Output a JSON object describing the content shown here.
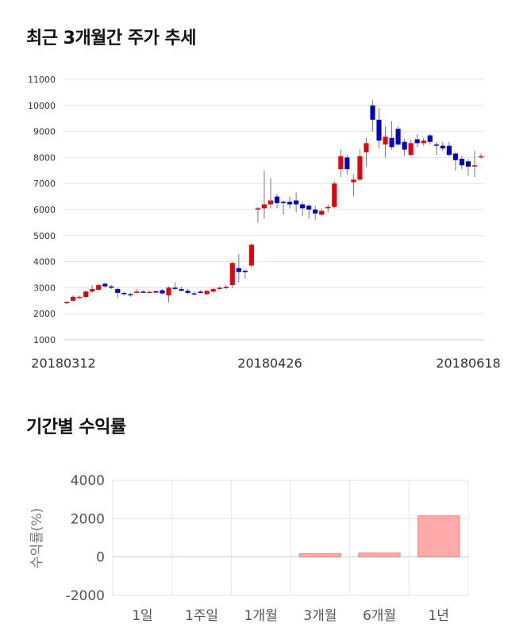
{
  "sections": {
    "price_title": "최근 3개월간 주가 추세",
    "returns_title": "기간별 수익률"
  },
  "chart_data": [
    {
      "type": "candlestick",
      "title": "최근 3개월간 주가 추세",
      "ylim": [
        1000,
        11000
      ],
      "y_ticks": [
        1000,
        2000,
        3000,
        4000,
        5000,
        6000,
        7000,
        8000,
        9000,
        10000,
        11000
      ],
      "x_tick_labels": [
        "20180312",
        "20180426",
        "20180618"
      ],
      "grid": true,
      "colors": {
        "up": "#e8000b",
        "down": "#0000cc",
        "grid": "#e6e6e6"
      },
      "candles": [
        [
          2400,
          2450,
          2380,
          2480
        ],
        [
          2500,
          2650,
          2450,
          2700
        ],
        [
          2620,
          2650,
          2580,
          2700
        ],
        [
          2640,
          2850,
          2600,
          2900
        ],
        [
          2850,
          2950,
          2800,
          3100
        ],
        [
          2920,
          3100,
          2880,
          3150
        ],
        [
          3150,
          3050,
          3000,
          3200
        ],
        [
          3050,
          3000,
          2950,
          3100
        ],
        [
          2950,
          2800,
          2600,
          3000
        ],
        [
          2800,
          2750,
          2700,
          2850
        ],
        [
          2750,
          2720,
          2650,
          2800
        ],
        [
          2800,
          2850,
          2780,
          2950
        ],
        [
          2850,
          2830,
          2800,
          2900
        ],
        [
          2830,
          2840,
          2800,
          2880
        ],
        [
          2860,
          2820,
          2800,
          2900
        ],
        [
          2900,
          2780,
          2750,
          2950
        ],
        [
          2700,
          3000,
          2450,
          3050
        ],
        [
          3000,
          2980,
          2900,
          3200
        ],
        [
          2950,
          2880,
          2850,
          3050
        ],
        [
          2880,
          2800,
          2750,
          2950
        ],
        [
          2780,
          2760,
          2700,
          2850
        ],
        [
          2850,
          2800,
          2780,
          2900
        ],
        [
          2750,
          2880,
          2720,
          2900
        ],
        [
          2850,
          2950,
          2800,
          3000
        ],
        [
          2950,
          3000,
          2900,
          3050
        ],
        [
          2980,
          3030,
          2950,
          3100
        ],
        [
          3100,
          3950,
          3000,
          4000
        ],
        [
          3750,
          3600,
          3200,
          4300
        ],
        [
          3650,
          3600,
          3350,
          3700
        ],
        [
          3850,
          4650,
          3800,
          4700
        ],
        [
          6000,
          6050,
          5500,
          6100
        ],
        [
          6050,
          6200,
          5650,
          7500
        ],
        [
          6200,
          6350,
          6050,
          7200
        ],
        [
          6500,
          6250,
          6050,
          6600
        ],
        [
          6300,
          6250,
          5800,
          6350
        ],
        [
          6300,
          6200,
          6050,
          6500
        ],
        [
          6350,
          6200,
          5900,
          6650
        ],
        [
          6200,
          6050,
          5750,
          6300
        ],
        [
          6150,
          6000,
          5650,
          6200
        ],
        [
          6000,
          5850,
          5600,
          6150
        ],
        [
          5800,
          5950,
          5750,
          6050
        ],
        [
          6050,
          6100,
          5900,
          6200
        ],
        [
          6100,
          7000,
          6050,
          7100
        ],
        [
          7550,
          8050,
          7250,
          8300
        ],
        [
          8000,
          7550,
          7350,
          8100
        ],
        [
          7050,
          7150,
          6500,
          7350
        ],
        [
          7150,
          8050,
          7100,
          8300
        ],
        [
          8200,
          8550,
          7650,
          8750
        ],
        [
          10000,
          9450,
          9000,
          10200
        ],
        [
          9450,
          8650,
          8350,
          9900
        ],
        [
          8500,
          8800,
          8000,
          9200
        ],
        [
          8750,
          8400,
          8300,
          9400
        ],
        [
          9100,
          8500,
          8450,
          9200
        ],
        [
          8600,
          8300,
          8050,
          8700
        ],
        [
          8100,
          8550,
          8050,
          8700
        ],
        [
          8700,
          8550,
          8400,
          8900
        ],
        [
          8550,
          8650,
          8450,
          8750
        ],
        [
          8850,
          8600,
          8500,
          8900
        ],
        [
          8500,
          8450,
          8100,
          8600
        ],
        [
          8450,
          8350,
          8250,
          8600
        ],
        [
          8450,
          8100,
          8050,
          8600
        ],
        [
          8150,
          7900,
          7500,
          8200
        ],
        [
          7950,
          7700,
          7550,
          8050
        ],
        [
          7850,
          7650,
          7300,
          7950
        ],
        [
          7700,
          7700,
          7250,
          8250
        ],
        [
          8050,
          8050,
          7950,
          8150
        ]
      ]
    },
    {
      "type": "bar",
      "title": "기간별 수익률",
      "ylabel": "수익률(%)",
      "categories": [
        "1일",
        "1주일",
        "1개월",
        "3개월",
        "6개월",
        "1년"
      ],
      "values": [
        0,
        0,
        0,
        170,
        210,
        2150
      ],
      "ylim": [
        -2000,
        4000
      ],
      "y_ticks": [
        -2000,
        0,
        2000,
        4000
      ],
      "grid": true,
      "colors": {
        "bar": "#ffaaaa",
        "bar_edge": "#e88a8a"
      }
    }
  ]
}
